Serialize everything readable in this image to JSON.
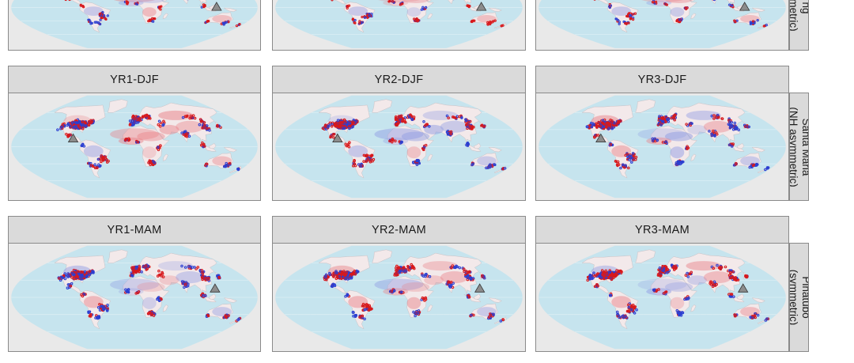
{
  "rows": [
    {
      "id": "row-top",
      "volcano_label": "ng",
      "volcano_type": "ymmetric)",
      "marker_lon": 120,
      "marker_lat": 1,
      "panels": [
        {
          "title": "",
          "red_bias": 0.66
        },
        {
          "title": "",
          "red_bias": 0.7
        },
        {
          "title": "",
          "red_bias": 0.6
        }
      ]
    },
    {
      "id": "row-djf",
      "volcano_label": "Santa Maria",
      "volcano_type": "(NH asymmetric)",
      "marker_lon": -91,
      "marker_lat": 14,
      "panels": [
        {
          "title": "YR1-DJF",
          "red_bias": 0.6
        },
        {
          "title": "YR2-DJF",
          "red_bias": 0.55
        },
        {
          "title": "YR3-DJF",
          "red_bias": 0.45
        }
      ]
    },
    {
      "id": "row-mam",
      "volcano_label": "Pinatubo",
      "volcano_type": "(symmetric)",
      "marker_lon": 120,
      "marker_lat": 15,
      "panels": [
        {
          "title": "YR1-MAM",
          "red_bias": 0.45
        },
        {
          "title": "YR2-MAM",
          "red_bias": 0.5
        },
        {
          "title": "YR3-MAM",
          "red_bias": 0.55
        }
      ]
    }
  ],
  "colors": {
    "ocean": "#c6e4ee",
    "land": "#f3e9ea",
    "warm": "#d7191c",
    "cool": "#2b3fd1",
    "marker": "#8c8c8c"
  }
}
